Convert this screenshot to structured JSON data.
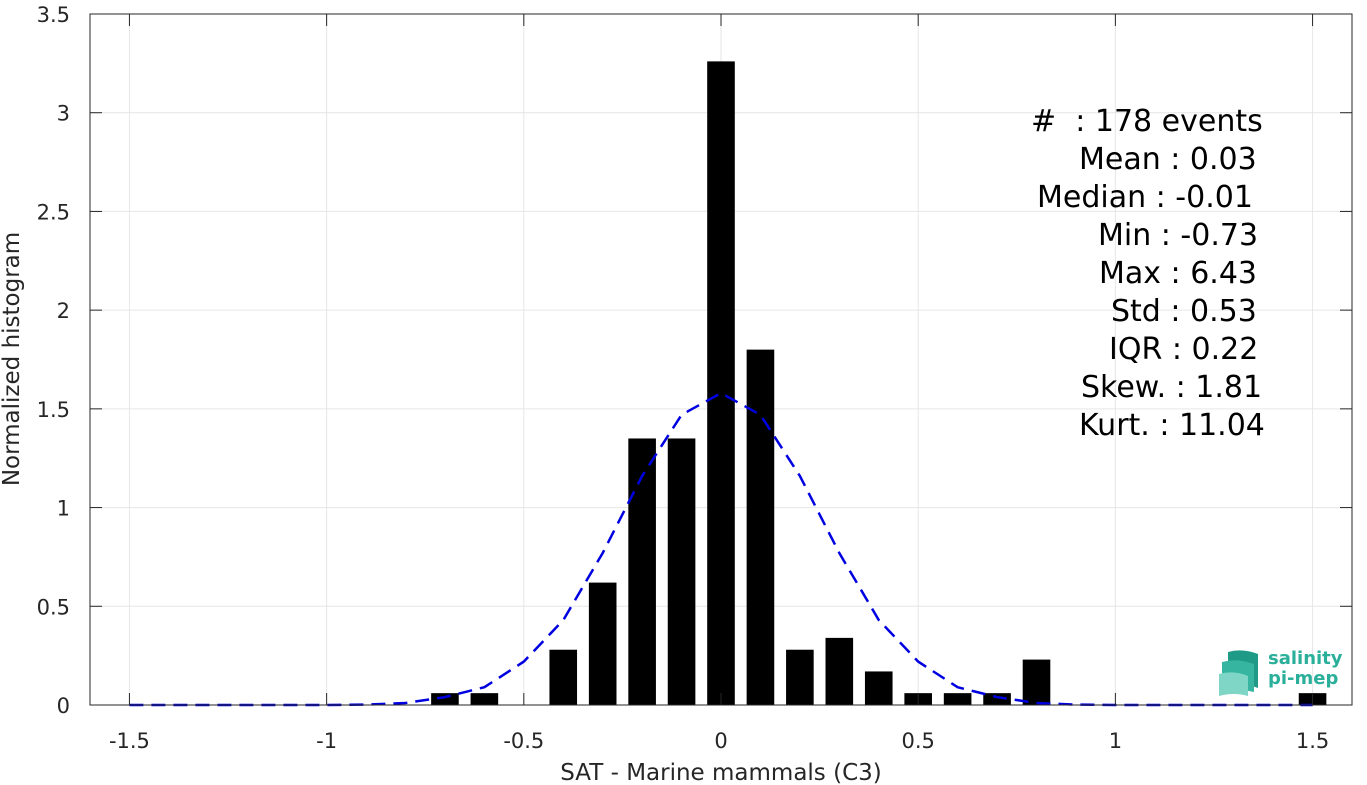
{
  "chart_data": {
    "type": "bar",
    "xlabel": "SAT - Marine mammals (C3)",
    "ylabel": "Normalized histogram",
    "xlim": [
      -1.6,
      1.6
    ],
    "ylim": [
      0,
      3.5
    ],
    "xticks": [
      -1.5,
      -1,
      -0.5,
      0,
      0.5,
      1,
      1.5
    ],
    "xtick_labels": [
      "-1.5",
      "-1",
      "-0.5",
      "0",
      "0.5",
      "1",
      "1.5"
    ],
    "yticks": [
      0,
      0.5,
      1,
      1.5,
      2,
      2.5,
      3,
      3.5
    ],
    "ytick_labels": [
      "0",
      "0.5",
      "1",
      "1.5",
      "2",
      "2.5",
      "3",
      "3.5"
    ],
    "grid": true,
    "bar_width": 0.07,
    "bars": [
      {
        "x": -0.7,
        "y": 0.06
      },
      {
        "x": -0.6,
        "y": 0.06
      },
      {
        "x": -0.4,
        "y": 0.28
      },
      {
        "x": -0.3,
        "y": 0.62
      },
      {
        "x": -0.2,
        "y": 1.35
      },
      {
        "x": -0.1,
        "y": 1.35
      },
      {
        "x": 0.0,
        "y": 3.26
      },
      {
        "x": 0.1,
        "y": 1.8
      },
      {
        "x": 0.2,
        "y": 0.28
      },
      {
        "x": 0.3,
        "y": 0.34
      },
      {
        "x": 0.4,
        "y": 0.17
      },
      {
        "x": 0.5,
        "y": 0.06
      },
      {
        "x": 0.6,
        "y": 0.06
      },
      {
        "x": 0.7,
        "y": 0.06
      },
      {
        "x": 0.8,
        "y": 0.23
      },
      {
        "x": 1.5,
        "y": 0.06
      }
    ],
    "fit_curve": {
      "style": "dashed",
      "color": "#0000e0",
      "x": [
        -1.5,
        -1.4,
        -1.3,
        -1.2,
        -1.1,
        -1.0,
        -0.9,
        -0.8,
        -0.7,
        -0.6,
        -0.5,
        -0.4,
        -0.3,
        -0.2,
        -0.1,
        0.0,
        0.1,
        0.2,
        0.3,
        0.4,
        0.5,
        0.6,
        0.7,
        0.8,
        0.9,
        1.0,
        1.1,
        1.2,
        1.3,
        1.4,
        1.5
      ],
      "y": [
        0,
        0,
        0,
        0,
        0,
        0,
        0.002,
        0.01,
        0.04,
        0.09,
        0.22,
        0.43,
        0.77,
        1.16,
        1.47,
        1.58,
        1.47,
        1.16,
        0.77,
        0.43,
        0.22,
        0.09,
        0.04,
        0.01,
        0.002,
        0,
        0,
        0,
        0,
        0,
        0
      ]
    }
  },
  "stats": [
    "#  : 178 events",
    "Mean : 0.03",
    "Median : -0.01",
    "Min : -0.73",
    "Max : 6.43",
    "Std : 0.53",
    "IQR : 0.22",
    "Skew. : 1.81",
    "Kurt. : 11.04"
  ],
  "logo": {
    "line1": "salinity",
    "line2": "pi-mep"
  }
}
